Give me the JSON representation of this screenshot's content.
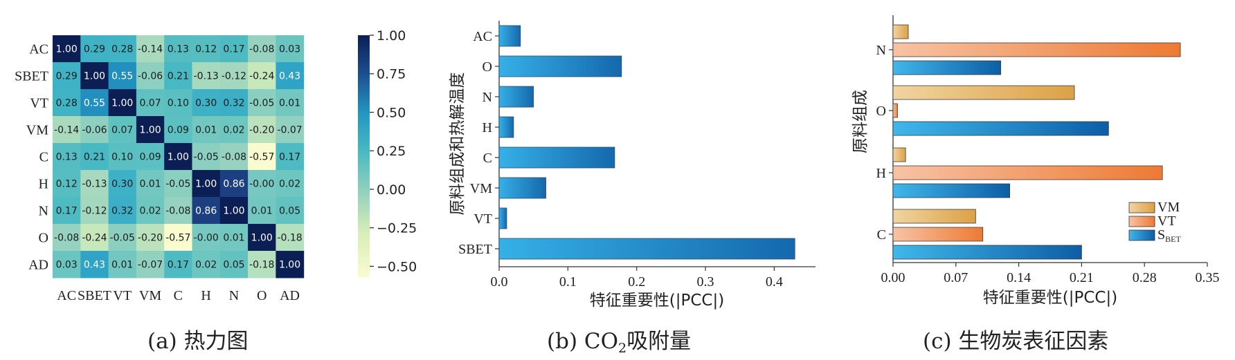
{
  "captions": {
    "a": "(a) 热力图",
    "b_pre": "(b) CO",
    "b_sub": "2",
    "b_post": "吸附量",
    "c": "(c) 生物炭表征因素"
  },
  "colors": {
    "heat_low": "#fbfbd0",
    "heat_mid": "#49b9c3",
    "heat_high": "#0c1f55",
    "bar_b": "#1e8fd0",
    "vm": "#e3ad55",
    "vt": "#ee8541",
    "sbet": "#1c82c6"
  },
  "chart_data": [
    {
      "type": "heatmap",
      "title": "热力图",
      "labels": [
        "AC",
        "SBET",
        "VT",
        "VM",
        "C",
        "H",
        "N",
        "O",
        "AD"
      ],
      "values": [
        [
          1.0,
          0.29,
          0.28,
          -0.14,
          0.13,
          0.12,
          0.17,
          -0.08,
          0.03
        ],
        [
          0.29,
          1.0,
          0.55,
          -0.06,
          0.21,
          -0.13,
          -0.12,
          -0.24,
          0.43
        ],
        [
          0.28,
          0.55,
          1.0,
          0.07,
          0.1,
          0.3,
          0.32,
          -0.05,
          0.01
        ],
        [
          -0.14,
          -0.06,
          0.07,
          1.0,
          0.09,
          0.01,
          0.02,
          -0.2,
          -0.07
        ],
        [
          0.13,
          0.21,
          0.1,
          0.09,
          1.0,
          -0.05,
          -0.08,
          -0.57,
          0.17
        ],
        [
          0.12,
          -0.13,
          0.3,
          0.01,
          -0.05,
          1.0,
          0.86,
          -0.0,
          0.02
        ],
        [
          0.17,
          -0.12,
          0.32,
          0.02,
          -0.08,
          0.86,
          1.0,
          0.01,
          0.05
        ],
        [
          -0.08,
          -0.24,
          -0.05,
          -0.2,
          -0.57,
          -0.0,
          0.01,
          1.0,
          -0.18
        ],
        [
          0.03,
          0.43,
          0.01,
          -0.07,
          0.17,
          0.02,
          0.05,
          -0.18,
          1.0
        ]
      ],
      "colorbar_ticks": [
        "1.00",
        "0.75",
        "0.50",
        "0.25",
        "0.00",
        "−0.25",
        "−0.50"
      ],
      "colorbar_tick_values": [
        1.0,
        0.75,
        0.5,
        0.25,
        0.0,
        -0.25,
        -0.5
      ],
      "vmin": -0.57,
      "vmax": 1.0
    },
    {
      "type": "bar",
      "orientation": "horizontal",
      "categories": [
        "AC",
        "O",
        "N",
        "H",
        "C",
        "VM",
        "VT",
        "SBET"
      ],
      "values": [
        0.031,
        0.178,
        0.05,
        0.021,
        0.168,
        0.068,
        0.011,
        0.43
      ],
      "xlabel": "特征重要性(|PCC|)",
      "ylabel": "原料组成和热解温度",
      "xlim": [
        0,
        0.46
      ],
      "xticks": [
        "0.0",
        "0.1",
        "0.2",
        "0.3",
        "0.4"
      ],
      "xtick_values": [
        0,
        0.1,
        0.2,
        0.3,
        0.4
      ]
    },
    {
      "type": "bar",
      "orientation": "horizontal",
      "categories": [
        "N",
        "O",
        "H",
        "C"
      ],
      "series": [
        {
          "name": "VM",
          "values": [
            0.017,
            0.202,
            0.014,
            0.092
          ]
        },
        {
          "name": "VT",
          "values": [
            0.32,
            0.005,
            0.3,
            0.1
          ]
        },
        {
          "name": "S",
          "name_sub": "BET",
          "values": [
            0.12,
            0.24,
            0.13,
            0.21
          ]
        }
      ],
      "xlabel": "特征重要性(|PCC|)",
      "ylabel": "原料组成",
      "xlim": [
        0,
        0.35
      ],
      "xticks": [
        "0.00",
        "0.07",
        "0.14",
        "0.21",
        "0.28",
        "0.35"
      ],
      "xtick_values": [
        0,
        0.07,
        0.14,
        0.21,
        0.28,
        0.35
      ],
      "legend_position": "bottom-right"
    }
  ]
}
